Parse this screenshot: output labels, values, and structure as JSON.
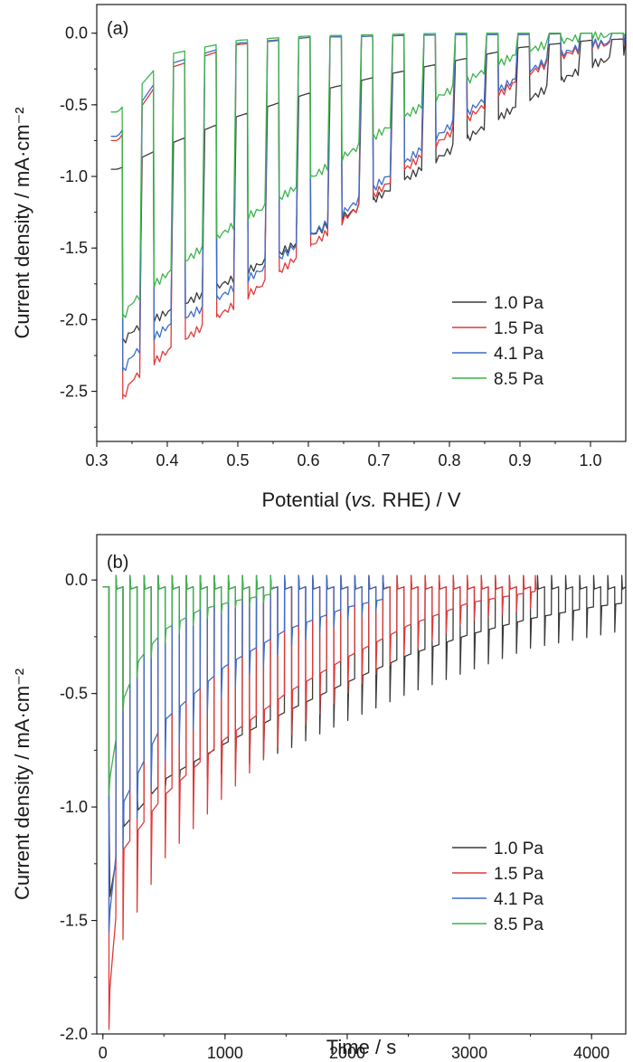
{
  "figure": "chart",
  "chart_data": [
    {
      "panel_label": "(a)",
      "type": "line",
      "description": "Chopped-light linear sweep voltammetry: photocurrent density vs potential for four sputtering pressures",
      "xlabel": "Potential (vs. RHE) / V",
      "ylabel": "Current density / mA·cm⁻²",
      "xlim": [
        0.3,
        1.05
      ],
      "ylim": [
        -2.85,
        0.2
      ],
      "xticks": [
        "0.3",
        "0.4",
        "0.5",
        "0.6",
        "0.7",
        "0.8",
        "0.9",
        "1.0"
      ],
      "yticks": [
        "0.0",
        "-0.5",
        "-1.0",
        "-1.5",
        "-2.0",
        "-2.5"
      ],
      "grid": false,
      "legend_position": "bottom-right",
      "chop_period_V": 0.0444,
      "light_on_interval_V": [
        0.32,
        1.05
      ],
      "series": [
        {
          "name": "1.0 Pa",
          "color": "#3a3a3a",
          "x": [
            0.33,
            0.35,
            0.4,
            0.45,
            0.5,
            0.55,
            0.6,
            0.65,
            0.7,
            0.75,
            0.8,
            0.85,
            0.9,
            0.95,
            1.0,
            1.05
          ],
          "y": [
            -2.2,
            -2.08,
            -1.95,
            -1.82,
            -1.7,
            -1.56,
            -1.42,
            -1.28,
            -1.14,
            -0.98,
            -0.82,
            -0.65,
            -0.5,
            -0.35,
            -0.22,
            -0.15
          ],
          "dark_x": [
            0.33,
            0.4,
            0.5,
            0.6,
            0.7,
            0.8,
            0.9,
            1.0,
            1.05
          ],
          "dark_y": [
            -0.95,
            -0.78,
            -0.58,
            -0.42,
            -0.3,
            -0.2,
            -0.1,
            -0.05,
            -0.04
          ]
        },
        {
          "name": "1.5 Pa",
          "color": "#e03a3a",
          "x": [
            0.33,
            0.35,
            0.4,
            0.45,
            0.5,
            0.55,
            0.6,
            0.65,
            0.7,
            0.75,
            0.8,
            0.85,
            0.9,
            0.95,
            1.0
          ],
          "y": [
            -2.62,
            -2.42,
            -2.22,
            -2.05,
            -1.88,
            -1.7,
            -1.5,
            -1.3,
            -1.1,
            -0.9,
            -0.7,
            -0.5,
            -0.32,
            -0.18,
            -0.08
          ],
          "dark_x": [
            0.33,
            0.4,
            0.5,
            0.6,
            0.7,
            0.8,
            0.9,
            1.0
          ],
          "dark_y": [
            -0.75,
            -0.25,
            -0.08,
            -0.03,
            -0.02,
            -0.01,
            -0.01,
            0.0
          ]
        },
        {
          "name": "4.1 Pa",
          "color": "#3c6ec8",
          "x": [
            0.33,
            0.35,
            0.4,
            0.45,
            0.5,
            0.55,
            0.6,
            0.65,
            0.7,
            0.75,
            0.8,
            0.85,
            0.9,
            0.95,
            1.0
          ],
          "y": [
            -2.42,
            -2.25,
            -2.05,
            -1.92,
            -1.76,
            -1.6,
            -1.42,
            -1.25,
            -1.05,
            -0.85,
            -0.65,
            -0.46,
            -0.3,
            -0.16,
            -0.07
          ],
          "dark_x": [
            0.33,
            0.4,
            0.5,
            0.6,
            0.7,
            0.8,
            0.9,
            1.0
          ],
          "dark_y": [
            -0.72,
            -0.22,
            -0.07,
            -0.03,
            -0.02,
            -0.01,
            -0.01,
            0.0
          ]
        },
        {
          "name": "8.5 Pa",
          "color": "#3cb44b",
          "x": [
            0.33,
            0.35,
            0.4,
            0.45,
            0.5,
            0.55,
            0.6,
            0.65,
            0.7,
            0.75,
            0.8,
            0.85,
            0.9,
            0.95,
            1.0
          ],
          "y": [
            -2.05,
            -1.88,
            -1.68,
            -1.5,
            -1.32,
            -1.18,
            -1.02,
            -0.86,
            -0.7,
            -0.54,
            -0.4,
            -0.26,
            -0.14,
            -0.06,
            -0.02
          ],
          "dark_x": [
            0.33,
            0.4,
            0.5,
            0.6,
            0.7,
            0.8,
            0.9,
            1.0
          ],
          "dark_y": [
            -0.55,
            -0.15,
            -0.05,
            -0.02,
            -0.01,
            0.0,
            0.0,
            0.0
          ]
        }
      ]
    },
    {
      "panel_label": "(b)",
      "type": "line",
      "description": "Chopped-light chronoamperometry: transient photocurrent density vs time for four sputtering pressures",
      "xlabel": "Time / s",
      "ylabel": "Current density / mA·cm⁻²",
      "xlim": [
        -50,
        4280
      ],
      "ylim": [
        -2.0,
        0.2
      ],
      "xticks": [
        "0",
        "1000",
        "2000",
        "3000",
        "4000"
      ],
      "yticks": [
        "0.0",
        "-0.5",
        "-1.0",
        "-1.5",
        "-2.0"
      ],
      "grid": false,
      "legend_position": "bottom-right",
      "chop_period_s": 115,
      "series": [
        {
          "name": "1.0 Pa",
          "color": "#3a3a3a",
          "t_start": 50,
          "t_end": 4280,
          "envelope_t": [
            50,
            150,
            500,
            1000,
            1500,
            2000,
            2500,
            3000,
            3500,
            4000,
            4280
          ],
          "envelope_y": [
            -1.42,
            -1.1,
            -0.88,
            -0.72,
            -0.58,
            -0.45,
            -0.33,
            -0.24,
            -0.17,
            -0.12,
            -0.1
          ],
          "spike_depth": [
            -0.98,
            -0.95,
            -0.92,
            -0.85,
            -0.75,
            -0.62,
            -0.5,
            -0.4,
            -0.3,
            -0.25,
            -0.22
          ]
        },
        {
          "name": "1.5 Pa",
          "color": "#e03a3a",
          "t_start": 50,
          "t_end": 3540,
          "envelope_t": [
            50,
            150,
            500,
            1000,
            1500,
            2000,
            2500,
            3000,
            3540
          ],
          "envelope_y": [
            -1.85,
            -1.2,
            -0.95,
            -0.7,
            -0.5,
            -0.34,
            -0.2,
            -0.1,
            -0.05
          ],
          "spike_depth": [
            -1.98,
            -1.6,
            -1.23,
            -0.95,
            -0.7,
            -0.5,
            -0.32,
            -0.18,
            -0.12
          ]
        },
        {
          "name": "4.1 Pa",
          "color": "#3c6ec8",
          "t_start": 50,
          "t_end": 2330,
          "envelope_t": [
            50,
            150,
            500,
            1000,
            1500,
            2000,
            2330
          ],
          "envelope_y": [
            -1.5,
            -1.0,
            -0.62,
            -0.38,
            -0.22,
            -0.12,
            -0.08
          ],
          "spike_depth": [
            -1.55,
            -1.2,
            -0.8,
            -0.5,
            -0.3,
            -0.18,
            -0.12
          ]
        },
        {
          "name": "8.5 Pa",
          "color": "#3cb44b",
          "t_start": 50,
          "t_end": 1400,
          "envelope_t": [
            50,
            150,
            300,
            500,
            800,
            1100,
            1400
          ],
          "envelope_y": [
            -0.9,
            -0.55,
            -0.35,
            -0.22,
            -0.13,
            -0.09,
            -0.06
          ],
          "spike_depth": [
            -0.95,
            -0.6,
            -0.4,
            -0.28,
            -0.18,
            -0.12,
            -0.09
          ]
        }
      ]
    }
  ]
}
